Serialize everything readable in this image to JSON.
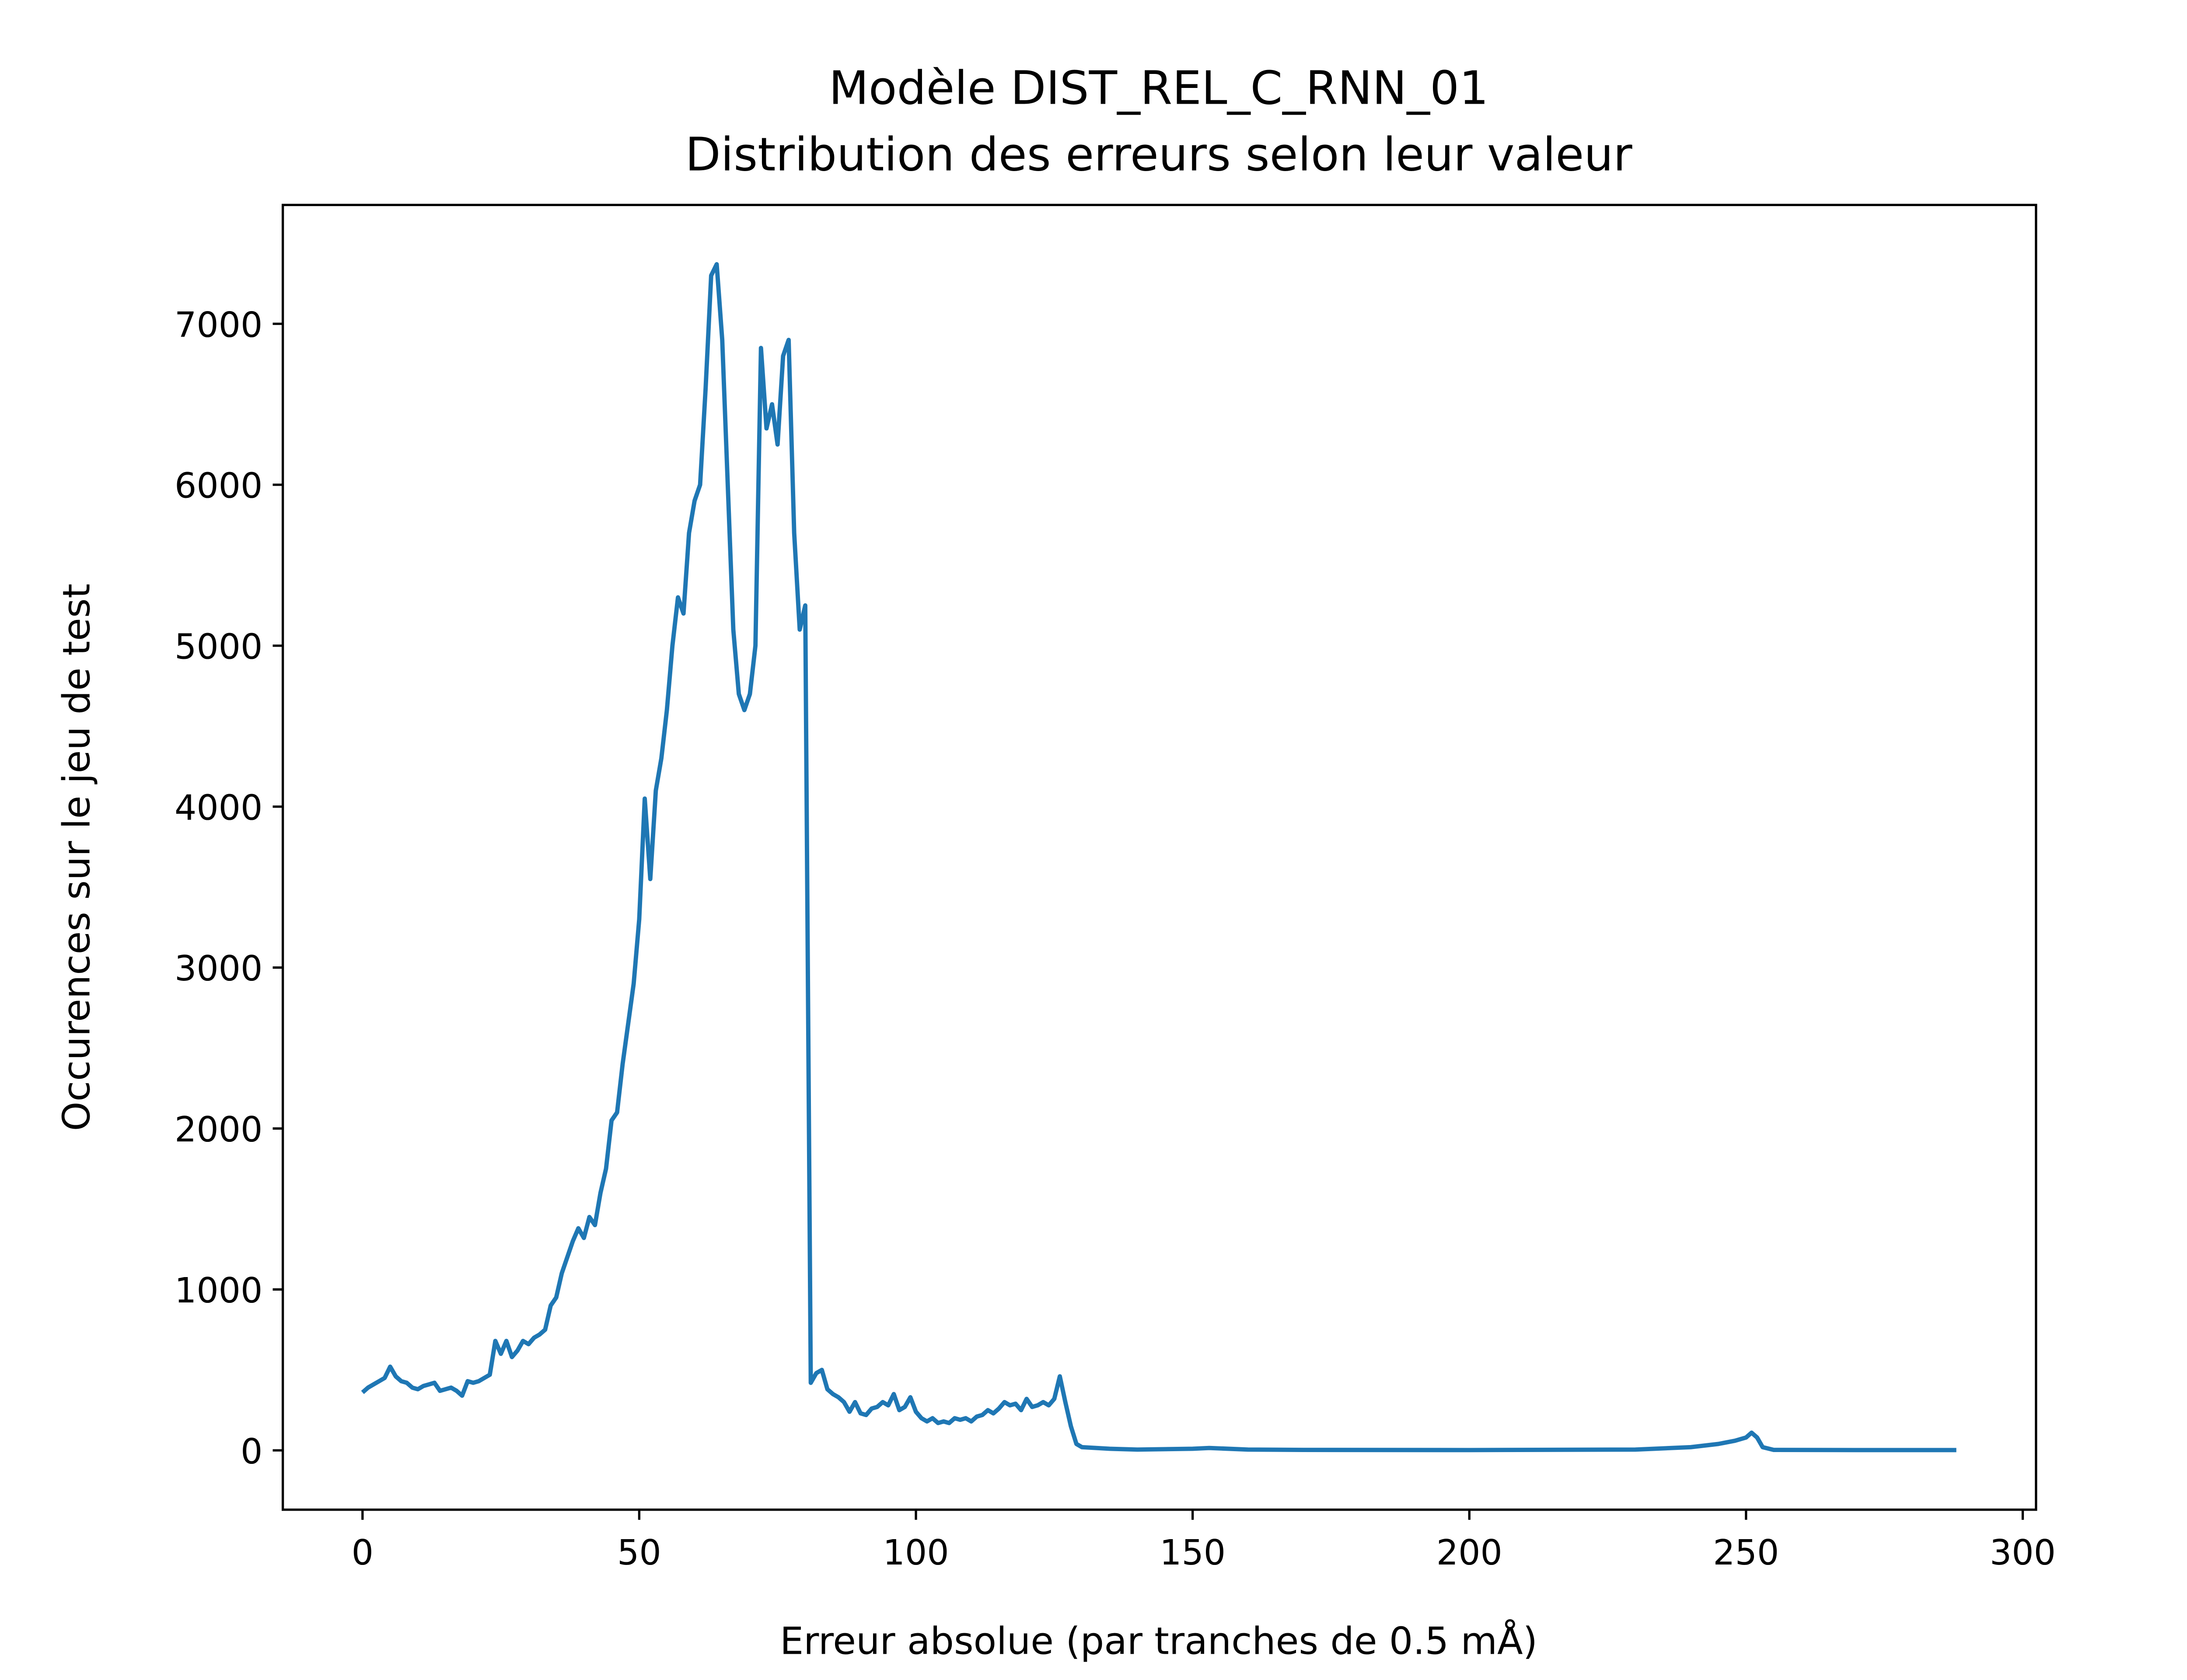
{
  "chart_data": {
    "type": "line",
    "title": [
      "Modèle DIST_REL_C_RNN_01",
      "Distribution des erreurs selon leur valeur"
    ],
    "x_label": "Erreur absolue (par tranches de 0.5 mÅ)",
    "y_label": "Occurences sur le jeu de test",
    "x": [
      0,
      1,
      2,
      3,
      4,
      5,
      6,
      7,
      8,
      9,
      10,
      11,
      12,
      13,
      14,
      15,
      16,
      17,
      18,
      19,
      20,
      21,
      22,
      23,
      24,
      25,
      26,
      27,
      28,
      29,
      30,
      31,
      32,
      33,
      34,
      35,
      36,
      37,
      38,
      39,
      40,
      41,
      42,
      43,
      44,
      45,
      46,
      47,
      48,
      49,
      50,
      51,
      52,
      53,
      54,
      55,
      56,
      57,
      58,
      59,
      60,
      61,
      62,
      63,
      64,
      65,
      66,
      67,
      68,
      69,
      70,
      71,
      72,
      73,
      74,
      75,
      76,
      77,
      78,
      79,
      80,
      81,
      82,
      83,
      84,
      85,
      86,
      87,
      88,
      89,
      90,
      91,
      92,
      93,
      94,
      95,
      96,
      97,
      98,
      99,
      100,
      101,
      102,
      103,
      104,
      105,
      106,
      107,
      108,
      109,
      110,
      111,
      112,
      113,
      114,
      115,
      116,
      117,
      118,
      119,
      120,
      121,
      122,
      123,
      124,
      125,
      126,
      127,
      128,
      129,
      130,
      135,
      140,
      150,
      153,
      160,
      170,
      200,
      230,
      240,
      245,
      248,
      250,
      251,
      252,
      253,
      255,
      270,
      288
    ],
    "series": [
      {
        "name": "erreurs",
        "color": "#1f77b4",
        "values": [
          360,
          390,
          410,
          430,
          450,
          520,
          460,
          430,
          420,
          390,
          380,
          400,
          410,
          420,
          370,
          380,
          390,
          370,
          340,
          430,
          420,
          430,
          450,
          470,
          680,
          600,
          680,
          580,
          620,
          680,
          660,
          700,
          720,
          750,
          900,
          950,
          1100,
          1200,
          1300,
          1380,
          1320,
          1450,
          1400,
          1600,
          1750,
          2050,
          2100,
          2400,
          2650,
          2900,
          3300,
          4050,
          3550,
          4100,
          4300,
          4600,
          5000,
          5300,
          5200,
          5700,
          5900,
          6000,
          6600,
          7300,
          7370,
          6900,
          6000,
          5100,
          4700,
          4600,
          4700,
          5000,
          6850,
          6350,
          6500,
          6250,
          6800,
          6900,
          5700,
          5100,
          5250,
          420,
          480,
          500,
          380,
          350,
          330,
          300,
          240,
          300,
          230,
          220,
          260,
          270,
          300,
          280,
          350,
          250,
          270,
          330,
          240,
          200,
          180,
          200,
          170,
          180,
          170,
          200,
          190,
          200,
          180,
          210,
          220,
          250,
          230,
          260,
          300,
          280,
          290,
          250,
          320,
          270,
          280,
          300,
          280,
          320,
          460,
          300,
          150,
          40,
          20,
          10,
          5,
          10,
          15,
          5,
          3,
          2,
          5,
          20,
          40,
          60,
          80,
          110,
          80,
          20,
          3,
          2,
          2
        ]
      }
    ],
    "xlim": [
      -14.4,
      302.4
    ],
    "xticks": [
      0,
      50,
      100,
      150,
      200,
      250,
      300
    ],
    "ylim": [
      -368.5,
      7738.5
    ],
    "yticks": [
      0,
      1000,
      2000,
      3000,
      4000,
      5000,
      6000,
      7000
    ]
  }
}
